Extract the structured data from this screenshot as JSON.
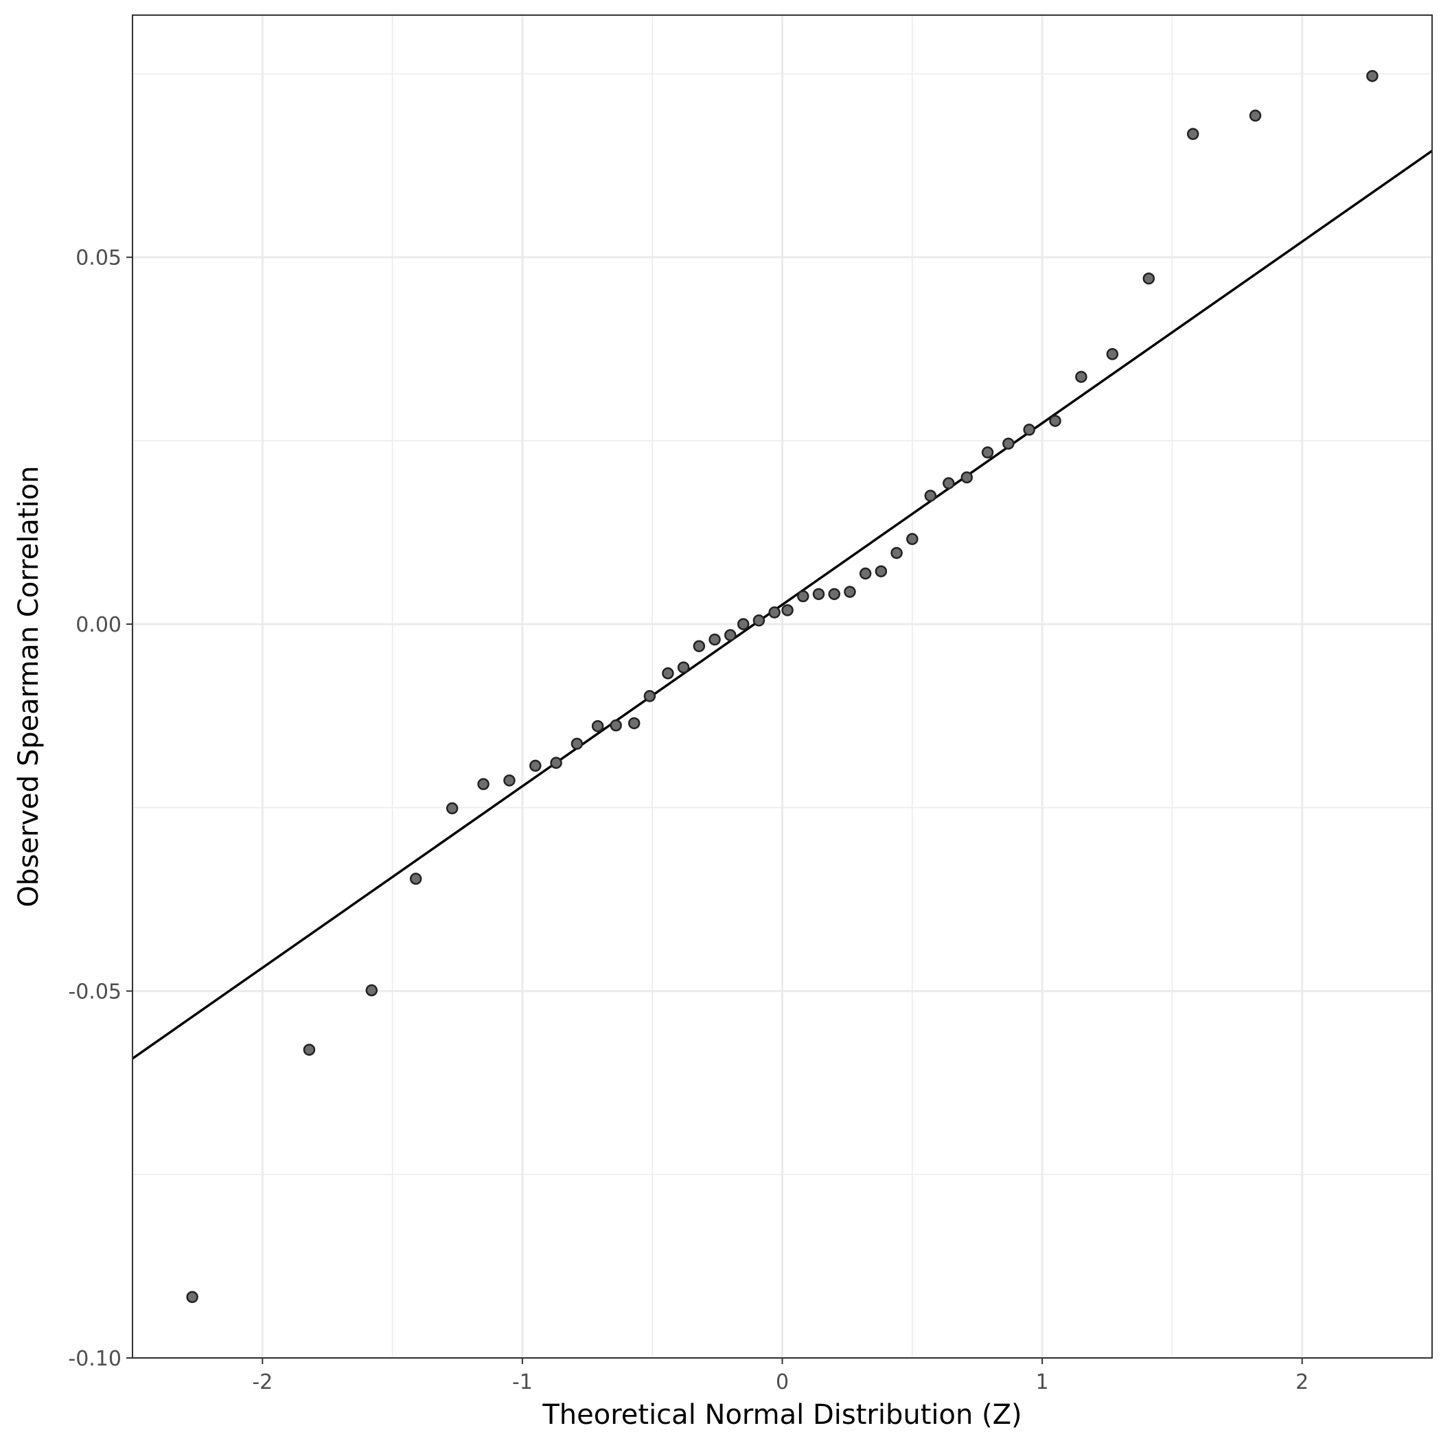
{
  "chart_data": {
    "type": "scatter",
    "title": "",
    "xlabel": "Theoretical Normal Distribution (Z)",
    "ylabel": "Observed Spearman Correlation",
    "xlim": [
      -2.5,
      2.5
    ],
    "ylim": [
      -0.1,
      0.083
    ],
    "x_ticks": [
      -2,
      -1,
      0,
      1,
      2
    ],
    "x_tick_labels": [
      "-2",
      "-1",
      "0",
      "1",
      "2"
    ],
    "y_ticks": [
      -0.1,
      -0.05,
      0.0,
      0.05
    ],
    "y_tick_labels": [
      "-0.10",
      "-0.05",
      "0.00",
      "0.05"
    ],
    "grid": true,
    "legend": "none",
    "colors": {
      "point_fill": "#6e6e6e",
      "point_stroke": "#222222",
      "line": "#000000",
      "grid": "#ebebeb"
    },
    "reference_line": {
      "x": [
        -2.5,
        2.5
      ],
      "y": [
        -0.0592,
        0.0645
      ]
    },
    "points": [
      {
        "x": -2.27,
        "y": -0.0917
      },
      {
        "x": -1.82,
        "y": -0.058
      },
      {
        "x": -1.58,
        "y": -0.0499
      },
      {
        "x": -1.41,
        "y": -0.0347
      },
      {
        "x": -1.27,
        "y": -0.0251
      },
      {
        "x": -1.15,
        "y": -0.0218
      },
      {
        "x": -1.05,
        "y": -0.0213
      },
      {
        "x": -0.95,
        "y": -0.0193
      },
      {
        "x": -0.87,
        "y": -0.0189
      },
      {
        "x": -0.79,
        "y": -0.0163
      },
      {
        "x": -0.71,
        "y": -0.0139
      },
      {
        "x": -0.64,
        "y": -0.0138
      },
      {
        "x": -0.57,
        "y": -0.0135
      },
      {
        "x": -0.51,
        "y": -0.0098
      },
      {
        "x": -0.44,
        "y": -0.0067
      },
      {
        "x": -0.38,
        "y": -0.0059
      },
      {
        "x": -0.32,
        "y": -0.003
      },
      {
        "x": -0.26,
        "y": -0.0021
      },
      {
        "x": -0.2,
        "y": -0.0015
      },
      {
        "x": -0.15,
        "y": 0.0
      },
      {
        "x": -0.09,
        "y": 0.0005
      },
      {
        "x": -0.03,
        "y": 0.0016
      },
      {
        "x": 0.02,
        "y": 0.0019
      },
      {
        "x": 0.08,
        "y": 0.0038
      },
      {
        "x": 0.14,
        "y": 0.0041
      },
      {
        "x": 0.2,
        "y": 0.0041
      },
      {
        "x": 0.26,
        "y": 0.0044
      },
      {
        "x": 0.32,
        "y": 0.0069
      },
      {
        "x": 0.38,
        "y": 0.0072
      },
      {
        "x": 0.44,
        "y": 0.0097
      },
      {
        "x": 0.5,
        "y": 0.0116
      },
      {
        "x": 0.57,
        "y": 0.0175
      },
      {
        "x": 0.64,
        "y": 0.0192
      },
      {
        "x": 0.71,
        "y": 0.02
      },
      {
        "x": 0.79,
        "y": 0.0234
      },
      {
        "x": 0.87,
        "y": 0.0246
      },
      {
        "x": 0.95,
        "y": 0.0265
      },
      {
        "x": 1.05,
        "y": 0.0277
      },
      {
        "x": 1.15,
        "y": 0.0337
      },
      {
        "x": 1.27,
        "y": 0.0368
      },
      {
        "x": 1.41,
        "y": 0.0471
      },
      {
        "x": 1.58,
        "y": 0.0668
      },
      {
        "x": 1.82,
        "y": 0.0693
      },
      {
        "x": 2.27,
        "y": 0.0747
      }
    ]
  }
}
